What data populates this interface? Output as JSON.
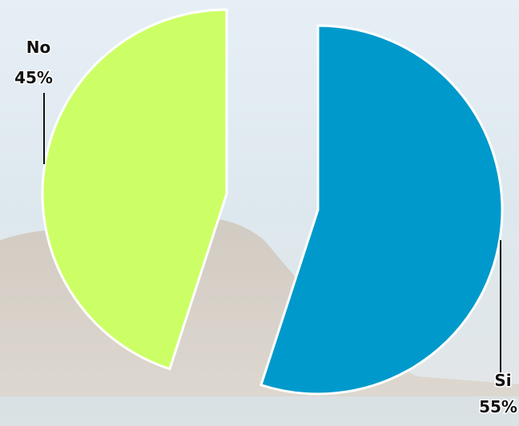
{
  "chart_data": {
    "type": "pie",
    "categories": [
      "Si",
      "No"
    ],
    "values": [
      55,
      45
    ],
    "value_labels": [
      "55%",
      "45%"
    ],
    "colors": [
      "#0099cc",
      "#ccff66"
    ]
  }
}
